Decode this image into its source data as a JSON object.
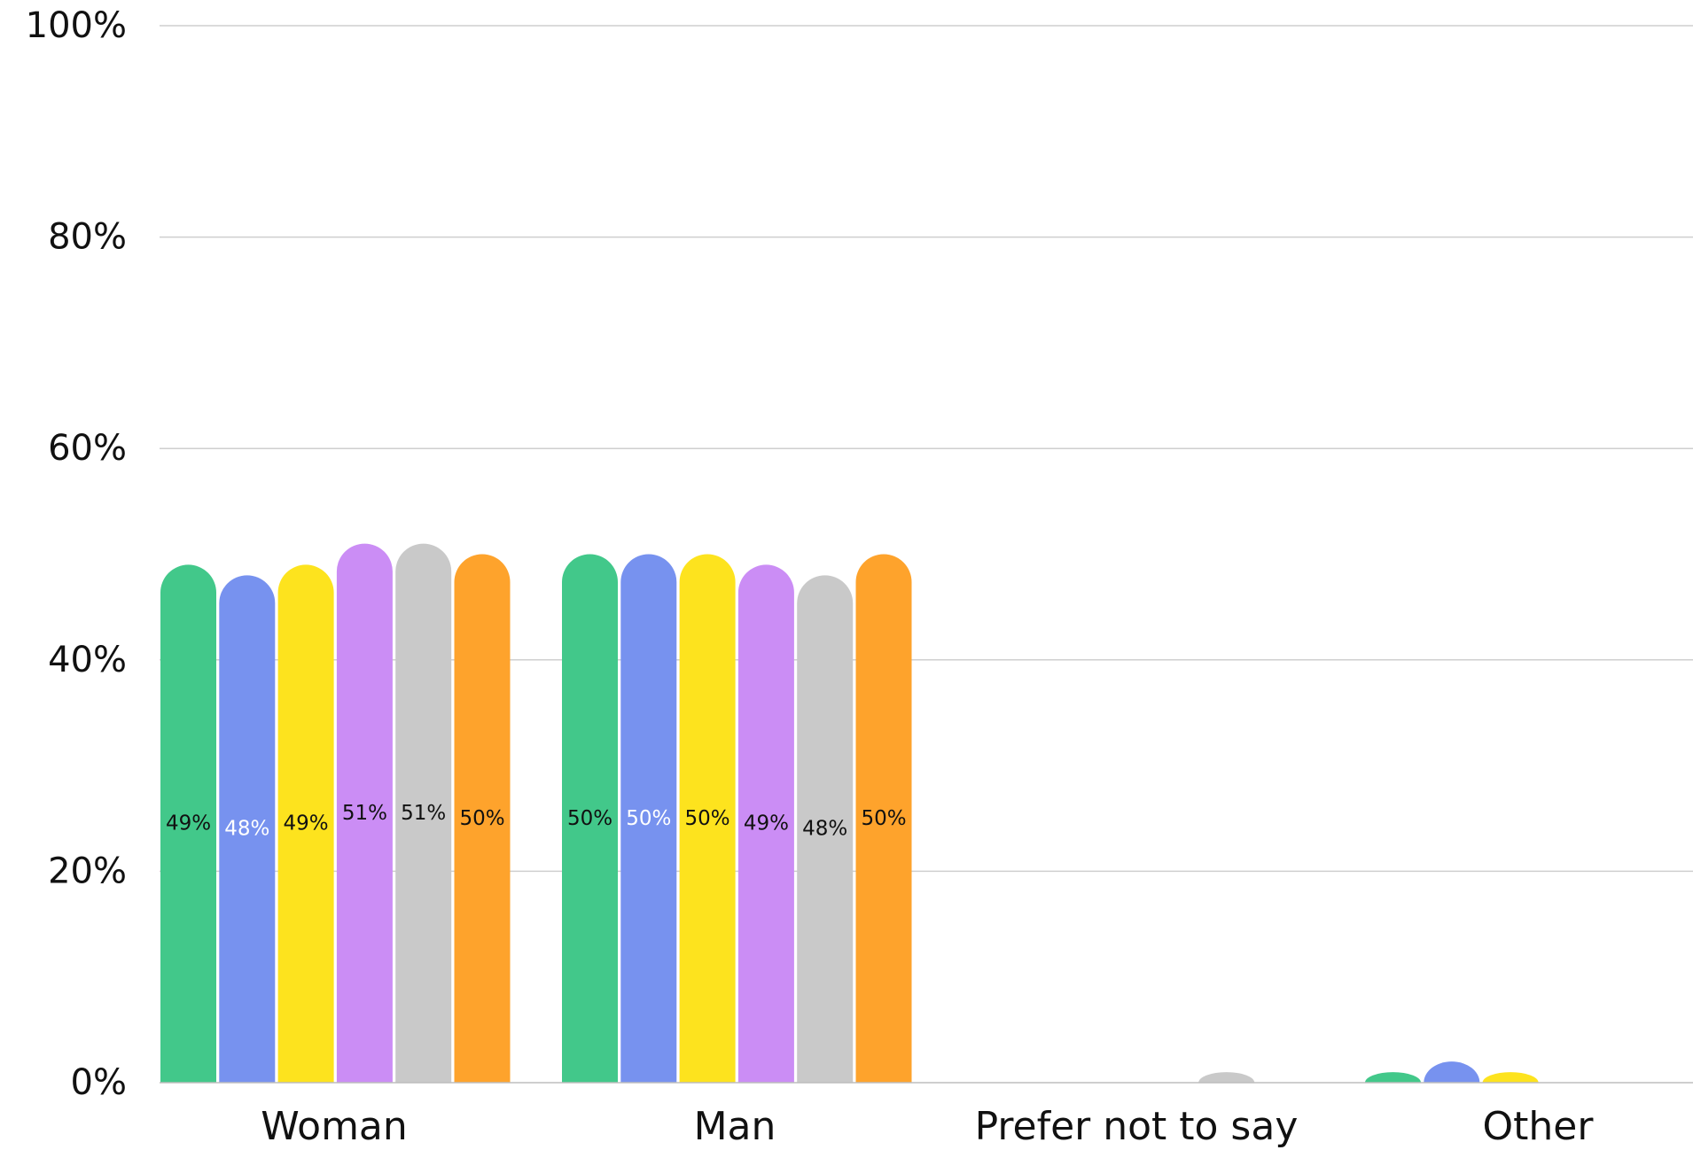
{
  "chart_data": {
    "type": "bar",
    "title": "",
    "xlabel": "",
    "ylabel": "",
    "ylim": [
      0,
      100
    ],
    "yticks": [
      "0%",
      "20%",
      "40%",
      "60%",
      "80%",
      "100%"
    ],
    "grid": true,
    "categories": [
      "Woman",
      "Man",
      "Prefer not to say",
      "Other"
    ],
    "series": [
      {
        "color": "#42c88a",
        "label_color": "#111111",
        "values": [
          49,
          50,
          0,
          1
        ],
        "labels": [
          "49%",
          "50%",
          "",
          ""
        ]
      },
      {
        "color": "#7792ef",
        "label_color": "#ffffff",
        "values": [
          48,
          50,
          0,
          2
        ],
        "labels": [
          "48%",
          "50%",
          "",
          ""
        ]
      },
      {
        "color": "#fde31e",
        "label_color": "#111111",
        "values": [
          49,
          50,
          0,
          1
        ],
        "labels": [
          "49%",
          "50%",
          "",
          ""
        ]
      },
      {
        "color": "#cb8df5",
        "label_color": "#111111",
        "values": [
          51,
          49,
          0,
          0
        ],
        "labels": [
          "51%",
          "49%",
          "",
          ""
        ]
      },
      {
        "color": "#c9c9c9",
        "label_color": "#111111",
        "values": [
          51,
          48,
          1,
          0
        ],
        "labels": [
          "51%",
          "48%",
          "",
          ""
        ]
      },
      {
        "color": "#fea32c",
        "label_color": "#111111",
        "values": [
          50,
          50,
          0,
          0
        ],
        "labels": [
          "50%",
          "50%",
          "",
          ""
        ]
      }
    ]
  }
}
